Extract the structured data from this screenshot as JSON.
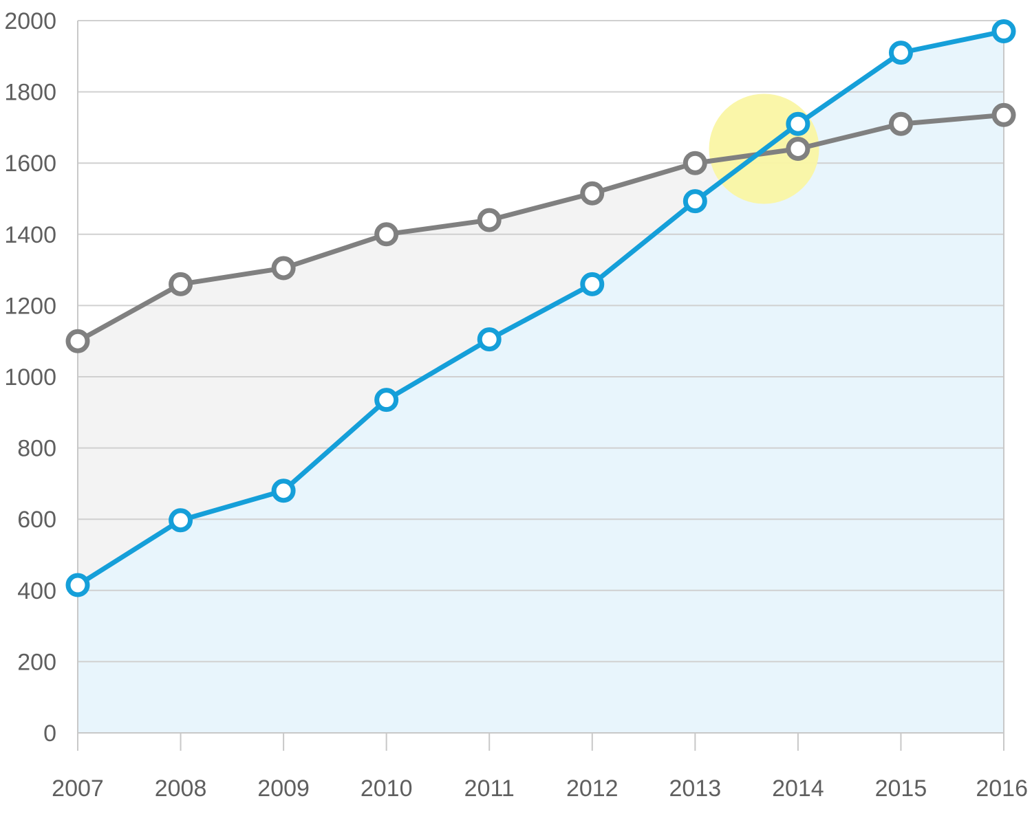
{
  "chart_data": {
    "type": "area",
    "title": "",
    "xlabel": "",
    "ylabel": "",
    "x": [
      2007,
      2008,
      2009,
      2010,
      2011,
      2012,
      2013,
      2014,
      2015,
      2016
    ],
    "x_tick_labels": [
      "2007",
      "2008",
      "2009",
      "2010",
      "2011",
      "2012",
      "2013",
      "2014",
      "2015",
      "2016"
    ],
    "y_tick_labels": [
      "0",
      "200",
      "400",
      "600",
      "800",
      "1000",
      "1200",
      "1400",
      "1600",
      "1800",
      "2000"
    ],
    "ylim": [
      0,
      2000
    ],
    "grid": "horizontal",
    "legend": "none",
    "series": [
      {
        "values": [
          1100,
          1260,
          1305,
          1400,
          1440,
          1515,
          1600,
          1640,
          1710,
          1735
        ],
        "color": "#808080",
        "fill": "#f3f3f3"
      },
      {
        "values": [
          415,
          597,
          680,
          935,
          1105,
          1260,
          1493,
          1710,
          1910,
          1970
        ],
        "color": "#159fd9",
        "fill": "#e8f5fc"
      }
    ],
    "annotations": [
      {
        "type": "highlight-circle",
        "x": 2013.67,
        "y": 1640,
        "color": "#faf6a4",
        "note": "crossover point"
      }
    ]
  }
}
